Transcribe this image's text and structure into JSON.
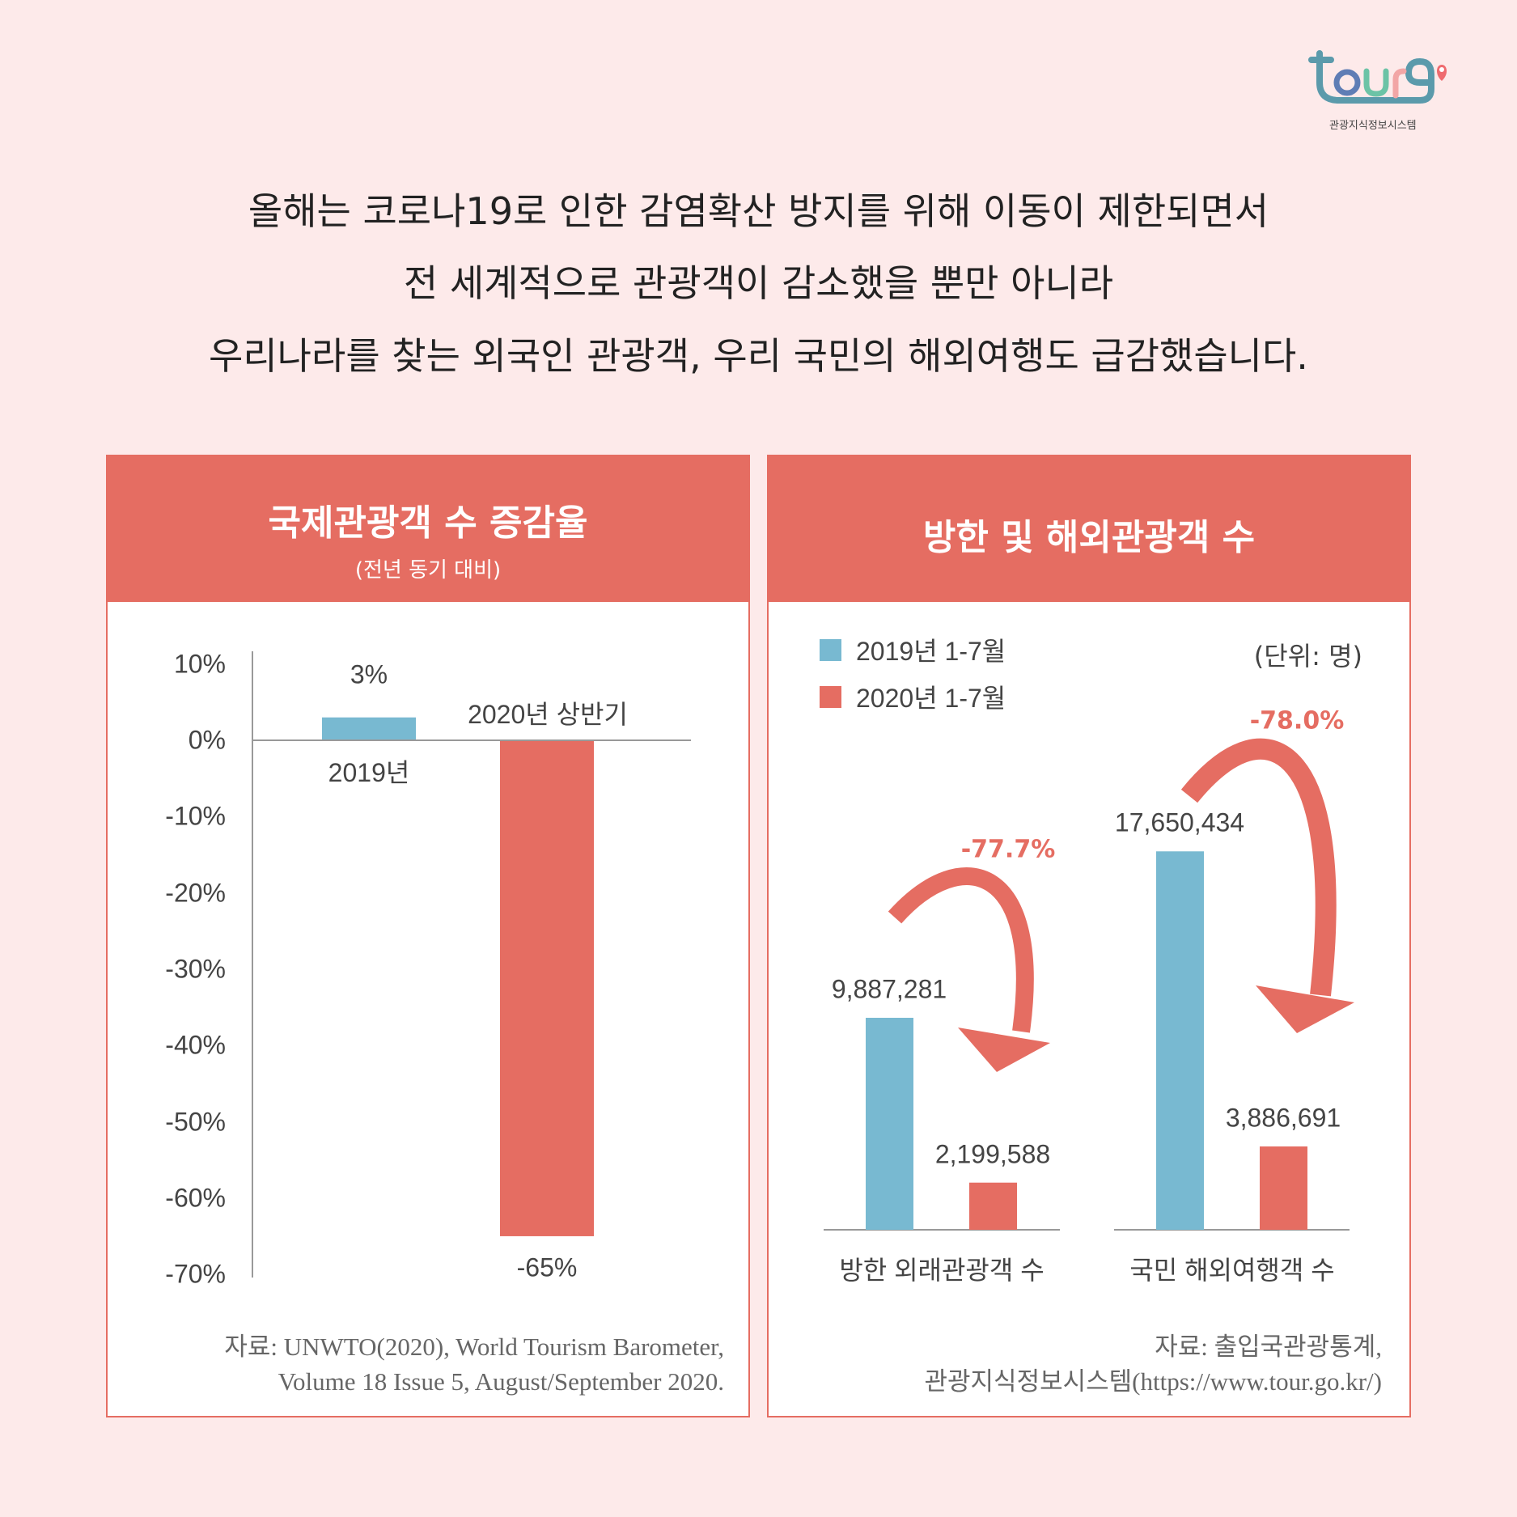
{
  "logo": {
    "wordmark": "tourg",
    "subtitle": "관광지식정보시스템"
  },
  "intro_lines": [
    "올해는 코로나19로 인한 감염확산 방지를 위해 이동이 제한되면서",
    "전 세계적으로 관광객이 감소했을 뿐만 아니라",
    "우리나라를 찾는 외국인 관광객, 우리 국민의 해외여행도 급감했습니다."
  ],
  "colors": {
    "background": "#fdeaea",
    "accent_red": "#e56d62",
    "accent_blue": "#78b9d1"
  },
  "chart_data": [
    {
      "type": "bar",
      "title": "국제관광객 수 증감율",
      "subtitle": "(전년 동기 대비)",
      "categories": [
        "2019년",
        "2020년 상반기"
      ],
      "values": [
        3,
        -65
      ],
      "value_labels": [
        "3%",
        "-65%"
      ],
      "unit": "%",
      "yticks": [
        "10%",
        "0%",
        "-10%",
        "-20%",
        "-30%",
        "-40%",
        "-50%",
        "-60%",
        "-70%"
      ],
      "ylim": [
        -70,
        10
      ],
      "bar_colors": [
        "#78b9d1",
        "#e56d62"
      ],
      "grid": false,
      "source": [
        "자료: UNWTO(2020), World Tourism Barometer,",
        "Volume 18 Issue 5, August/September 2020."
      ]
    },
    {
      "type": "bar",
      "title": "방한 및 해외관광객 수",
      "unit_label": "(단위: 명)",
      "categories": [
        "방한 외래관광객 수",
        "국민 해외여행객 수"
      ],
      "series": [
        {
          "name": "2019년 1-7월",
          "color": "#78b9d1",
          "values": [
            9887281,
            17650434
          ],
          "labels": [
            "9,887,281",
            "17,650,434"
          ]
        },
        {
          "name": "2020년 1-7월",
          "color": "#e56d62",
          "values": [
            2199588,
            3886691
          ],
          "labels": [
            "2,199,588",
            "3,886,691"
          ]
        }
      ],
      "changes": [
        "-77.7%",
        "-78.0%"
      ],
      "legend": "top-left",
      "grid": false,
      "source": [
        "자료: 출입국관광통계,",
        "관광지식정보시스템(https://www.tour.go.kr/)"
      ]
    }
  ]
}
